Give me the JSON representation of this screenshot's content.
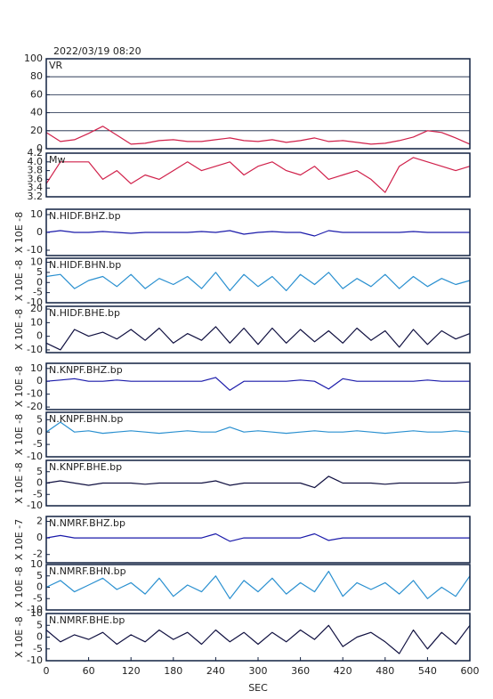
{
  "header": {
    "title": "2022/03/19 08:20"
  },
  "chart_data": [
    {
      "type": "line",
      "label": "VR",
      "color": "#d0204a",
      "grid": true,
      "xlim": [
        0,
        600
      ],
      "ylim": [
        0,
        100
      ],
      "yticks": [
        0,
        20,
        40,
        60,
        80,
        100
      ],
      "x": [
        0,
        20,
        40,
        60,
        80,
        100,
        120,
        140,
        160,
        180,
        200,
        220,
        240,
        260,
        280,
        300,
        320,
        340,
        360,
        380,
        400,
        420,
        440,
        460,
        480,
        500,
        520,
        540,
        560,
        580,
        600
      ],
      "values": [
        18,
        8,
        10,
        17,
        25,
        15,
        5,
        6,
        9,
        10,
        8,
        8,
        10,
        12,
        9,
        8,
        10,
        7,
        9,
        12,
        8,
        9,
        7,
        5,
        6,
        9,
        13,
        20,
        18,
        12,
        5
      ]
    },
    {
      "type": "line",
      "label": "Mw",
      "color": "#d0204a",
      "xlim": [
        0,
        600
      ],
      "ylim": [
        3.2,
        4.2
      ],
      "yticks": [
        3.2,
        3.4,
        3.6,
        3.8,
        {
          "value": 4,
          "label": "4.0"
        },
        4.2
      ],
      "x": [
        0,
        20,
        40,
        60,
        80,
        100,
        120,
        140,
        160,
        180,
        200,
        220,
        240,
        260,
        280,
        300,
        320,
        340,
        360,
        380,
        400,
        420,
        440,
        460,
        480,
        500,
        520,
        540,
        560,
        580,
        600
      ],
      "values": [
        3.5,
        4.0,
        4.0,
        4.0,
        3.6,
        3.8,
        3.5,
        3.7,
        3.6,
        3.8,
        4.0,
        3.8,
        3.9,
        4.0,
        3.7,
        3.9,
        4.0,
        3.8,
        3.7,
        3.9,
        3.6,
        3.7,
        3.8,
        3.6,
        3.3,
        3.9,
        4.1,
        4.0,
        3.9,
        3.8,
        3.9
      ]
    },
    {
      "type": "line",
      "label": "N.HIDF.BHZ.bp",
      "ylabel": "X 10E -8",
      "color": "#1a1aaa",
      "xlim": [
        0,
        600
      ],
      "ylim": [
        -13,
        13
      ],
      "yticks": [
        -10,
        0,
        10
      ],
      "x": [
        0,
        20,
        40,
        60,
        80,
        100,
        120,
        140,
        160,
        180,
        200,
        220,
        240,
        260,
        280,
        300,
        320,
        340,
        360,
        380,
        400,
        420,
        440,
        460,
        480,
        500,
        520,
        540,
        560,
        580,
        600
      ],
      "values": [
        0,
        1,
        0,
        0,
        0.5,
        0,
        -0.5,
        0,
        0,
        0,
        0,
        0.5,
        0,
        1,
        -1,
        0,
        0.5,
        0,
        0,
        -2,
        1,
        0,
        0,
        0,
        0,
        0,
        0.5,
        0,
        0,
        0,
        0
      ]
    },
    {
      "type": "line",
      "label": "N.HIDF.BHN.bp",
      "ylabel": "X 10E -8",
      "color": "#2a90d0",
      "xlim": [
        0,
        600
      ],
      "ylim": [
        -10,
        12
      ],
      "yticks": [
        -10,
        -5,
        0,
        5,
        10
      ],
      "x": [
        0,
        20,
        40,
        60,
        80,
        100,
        120,
        140,
        160,
        180,
        200,
        220,
        240,
        260,
        280,
        300,
        320,
        340,
        360,
        380,
        400,
        420,
        440,
        460,
        480,
        500,
        520,
        540,
        560,
        580,
        600
      ],
      "values": [
        3,
        4,
        -3,
        1,
        3,
        -2,
        4,
        -3,
        2,
        -1,
        3,
        -3,
        5,
        -4,
        4,
        -2,
        3,
        -4,
        4,
        -1,
        5,
        -3,
        2,
        -2,
        4,
        -3,
        3,
        -2,
        2,
        -1,
        1
      ]
    },
    {
      "type": "line",
      "label": "N.HIDF.BHE.bp",
      "ylabel": "X 10E -8",
      "color": "#101040",
      "xlim": [
        0,
        600
      ],
      "ylim": [
        -12,
        22
      ],
      "yticks": [
        -10,
        0,
        10,
        20
      ],
      "x": [
        0,
        20,
        40,
        60,
        80,
        100,
        120,
        140,
        160,
        180,
        200,
        220,
        240,
        260,
        280,
        300,
        320,
        340,
        360,
        380,
        400,
        420,
        440,
        460,
        480,
        500,
        520,
        540,
        560,
        580,
        600
      ],
      "values": [
        -5,
        -10,
        5,
        0,
        3,
        -2,
        5,
        -3,
        6,
        -5,
        2,
        -3,
        7,
        -5,
        6,
        -6,
        6,
        -5,
        5,
        -4,
        4,
        -5,
        6,
        -3,
        4,
        -8,
        5,
        -6,
        4,
        -2,
        2
      ]
    },
    {
      "type": "line",
      "label": "N.KNPF.BHZ.bp",
      "ylabel": "X 10E -8",
      "color": "#1a1aaa",
      "xlim": [
        0,
        600
      ],
      "ylim": [
        -22,
        14
      ],
      "yticks": [
        -20,
        -10,
        0,
        10
      ],
      "x": [
        0,
        20,
        40,
        60,
        80,
        100,
        120,
        140,
        160,
        180,
        200,
        220,
        240,
        260,
        280,
        300,
        320,
        340,
        360,
        380,
        400,
        420,
        440,
        460,
        480,
        500,
        520,
        540,
        560,
        580,
        600
      ],
      "values": [
        0,
        1,
        2,
        0,
        0,
        1,
        0,
        0,
        0,
        0,
        0,
        0,
        3,
        -7,
        0,
        0,
        0,
        0,
        1,
        0,
        -6,
        2,
        0,
        0,
        0,
        0,
        0,
        1,
        0,
        0,
        0
      ]
    },
    {
      "type": "line",
      "label": "N.KNPF.BHN.bp",
      "ylabel": "X 10E -8",
      "color": "#2a90d0",
      "xlim": [
        0,
        600
      ],
      "ylim": [
        -10,
        8
      ],
      "yticks": [
        -10,
        -5,
        0,
        5
      ],
      "x": [
        0,
        20,
        40,
        60,
        80,
        100,
        120,
        140,
        160,
        180,
        200,
        220,
        240,
        260,
        280,
        300,
        320,
        340,
        360,
        380,
        400,
        420,
        440,
        460,
        480,
        500,
        520,
        540,
        560,
        580,
        600
      ],
      "values": [
        0,
        4,
        0,
        0.5,
        -0.5,
        0,
        0.5,
        0,
        -0.5,
        0,
        0.5,
        0,
        0,
        2,
        0,
        0.5,
        0,
        -0.5,
        0,
        0.5,
        0,
        0,
        0.5,
        0,
        -0.5,
        0,
        0.5,
        0,
        0,
        0.5,
        0
      ]
    },
    {
      "type": "line",
      "label": "N.KNPF.BHE.bp",
      "ylabel": "X 10E -8",
      "color": "#101040",
      "xlim": [
        0,
        600
      ],
      "ylim": [
        -10,
        10
      ],
      "yticks": [
        -10,
        -5,
        0,
        5
      ],
      "x": [
        0,
        20,
        40,
        60,
        80,
        100,
        120,
        140,
        160,
        180,
        200,
        220,
        240,
        260,
        280,
        300,
        320,
        340,
        360,
        380,
        400,
        420,
        440,
        460,
        480,
        500,
        520,
        540,
        560,
        580,
        600
      ],
      "values": [
        0,
        1,
        0,
        -1,
        0,
        0,
        0,
        -0.5,
        0,
        0,
        0,
        0,
        1,
        -1,
        0,
        0,
        0,
        0,
        0,
        -2,
        3,
        0,
        0,
        0,
        -0.5,
        0,
        0,
        0,
        0,
        0,
        0.5
      ]
    },
    {
      "type": "line",
      "label": "N.NMRF.BHZ.bp",
      "ylabel": "X 10E -7",
      "color": "#1a1aaa",
      "xlim": [
        0,
        600
      ],
      "ylim": [
        -3,
        2.6
      ],
      "yticks": [
        -2,
        0,
        2
      ],
      "x": [
        0,
        20,
        40,
        60,
        80,
        100,
        120,
        140,
        160,
        180,
        200,
        220,
        240,
        260,
        280,
        300,
        320,
        340,
        360,
        380,
        400,
        420,
        440,
        460,
        480,
        500,
        520,
        540,
        560,
        580,
        600
      ],
      "values": [
        0,
        0.3,
        0,
        0,
        0,
        0,
        0,
        0,
        0,
        0,
        0,
        0,
        0.5,
        -0.4,
        0,
        0,
        0,
        0,
        0,
        0.5,
        -0.3,
        0,
        0,
        0,
        0,
        0,
        0,
        0,
        0,
        0,
        0
      ]
    },
    {
      "type": "line",
      "label": "N.NMRF.BHN.bp",
      "ylabel": "X 10E -8",
      "color": "#2a90d0",
      "xlim": [
        0,
        600
      ],
      "ylim": [
        -10,
        10
      ],
      "yticks": [
        -10,
        -5,
        0,
        5,
        10
      ],
      "x": [
        0,
        20,
        40,
        60,
        80,
        100,
        120,
        140,
        160,
        180,
        200,
        220,
        240,
        260,
        280,
        300,
        320,
        340,
        360,
        380,
        400,
        420,
        440,
        460,
        480,
        500,
        520,
        540,
        560,
        580,
        600
      ],
      "values": [
        0,
        3,
        -2,
        1,
        4,
        -1,
        2,
        -3,
        4,
        -4,
        1,
        -2,
        5,
        -5,
        3,
        -2,
        4,
        -3,
        2,
        -2,
        7,
        -4,
        2,
        -1,
        2,
        -3,
        3,
        -5,
        0,
        -4,
        5
      ]
    },
    {
      "type": "line",
      "label": "N.NMRF.BHE.bp",
      "ylabel": "X 10E -8",
      "xlabel": "SEC",
      "color": "#101040",
      "xlim": [
        0,
        600
      ],
      "ylim": [
        -10,
        10
      ],
      "yticks": [
        -10,
        -5,
        0,
        5,
        10
      ],
      "xticks": [
        0,
        60,
        120,
        180,
        240,
        300,
        360,
        420,
        480,
        540,
        600
      ],
      "x": [
        0,
        20,
        40,
        60,
        80,
        100,
        120,
        140,
        160,
        180,
        200,
        220,
        240,
        260,
        280,
        300,
        320,
        340,
        360,
        380,
        400,
        420,
        440,
        460,
        480,
        500,
        520,
        540,
        560,
        580,
        600
      ],
      "values": [
        3,
        -2,
        1,
        -1,
        2,
        -3,
        1,
        -2,
        3,
        -1,
        2,
        -3,
        3,
        -2,
        2,
        -3,
        2,
        -2,
        3,
        -1,
        5,
        -4,
        0,
        2,
        -2,
        -7,
        3,
        -5,
        2,
        -3,
        5
      ]
    }
  ]
}
